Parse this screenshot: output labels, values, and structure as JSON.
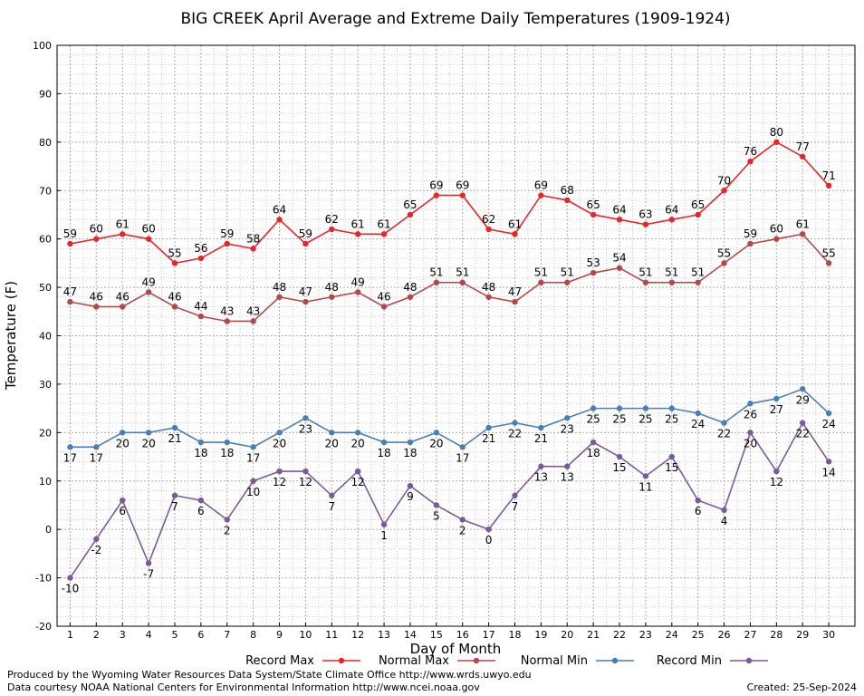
{
  "chart_data": {
    "type": "line",
    "title": "BIG CREEK April Average and Extreme Daily Temperatures (1909-1924)",
    "xlabel": "Day of Month",
    "ylabel": "Temperature (F)",
    "ylim": [
      -20,
      100
    ],
    "yticks": [
      -20,
      -10,
      0,
      10,
      20,
      30,
      40,
      50,
      60,
      70,
      80,
      90,
      100
    ],
    "x": [
      1,
      2,
      3,
      4,
      5,
      6,
      7,
      8,
      9,
      10,
      11,
      12,
      13,
      14,
      15,
      16,
      17,
      18,
      19,
      20,
      21,
      22,
      23,
      24,
      25,
      26,
      27,
      28,
      29,
      30
    ],
    "grid": true,
    "legend_position": "bottom",
    "series": [
      {
        "name": "Record Max",
        "color": "#e8262a",
        "label_pos": "above",
        "values": [
          59,
          60,
          61,
          60,
          55,
          56,
          59,
          58,
          64,
          59,
          62,
          61,
          61,
          65,
          69,
          69,
          62,
          61,
          69,
          68,
          65,
          64,
          63,
          64,
          65,
          70,
          76,
          80,
          77,
          71
        ]
      },
      {
        "name": "Normal Max",
        "color": "#b5474b",
        "label_pos": "above",
        "values": [
          47,
          46,
          46,
          49,
          46,
          44,
          43,
          43,
          48,
          47,
          48,
          49,
          46,
          48,
          51,
          51,
          48,
          47,
          51,
          51,
          53,
          54,
          51,
          51,
          51,
          55,
          59,
          60,
          61,
          55
        ]
      },
      {
        "name": "Normal Min",
        "color": "#4a7fb5",
        "label_pos": "below",
        "values": [
          17,
          17,
          20,
          20,
          21,
          18,
          18,
          17,
          20,
          23,
          20,
          20,
          18,
          18,
          20,
          17,
          21,
          22,
          21,
          23,
          25,
          25,
          25,
          25,
          24,
          22,
          26,
          27,
          29,
          24
        ]
      },
      {
        "name": "Record Min",
        "color": "#7b5a9a",
        "label_pos": "below",
        "values": [
          -10,
          -2,
          6,
          -7,
          7,
          6,
          2,
          10,
          12,
          12,
          7,
          12,
          1,
          9,
          5,
          2,
          0,
          7,
          13,
          13,
          18,
          15,
          11,
          15,
          6,
          4,
          20,
          12,
          22,
          14
        ]
      }
    ]
  },
  "footer": {
    "left_line1": "Produced by the Wyoming Water Resources Data System/State Climate Office http://www.wrds.uwyo.edu",
    "left_line2": "Data courtesy NOAA National Centers for Environmental Information http://www.ncei.noaa.gov",
    "created": "Created:  25-Sep-2024"
  }
}
